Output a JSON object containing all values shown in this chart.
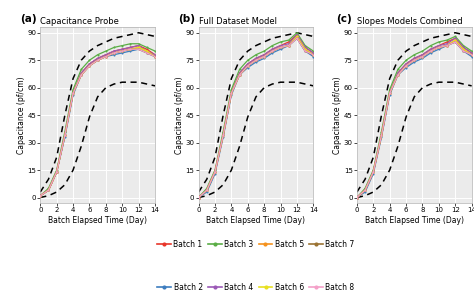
{
  "titles": [
    "Capacitance Probe",
    "Full Dataset Model",
    "Slopes Models Combined"
  ],
  "panel_labels": [
    "(a)",
    "(b)",
    "(c)"
  ],
  "ylabel": "Capacitance (pf/cm)",
  "xlabel": "Batch Elapsed Time (Day)",
  "ylim": [
    -3,
    93
  ],
  "xlim": [
    0,
    14
  ],
  "yticks": [
    0,
    15,
    30,
    45,
    60,
    75,
    90
  ],
  "xticks": [
    0,
    2,
    4,
    6,
    8,
    10,
    12,
    14
  ],
  "background_color": "#ffffff",
  "axes_bg_color": "#ebebeb",
  "grid_color": "#ffffff",
  "batches": {
    "Batch 1": {
      "color": "#e8362a"
    },
    "Batch 2": {
      "color": "#3d7dbf"
    },
    "Batch 3": {
      "color": "#5aad45"
    },
    "Batch 4": {
      "color": "#9b59b6"
    },
    "Batch 5": {
      "color": "#f5921e"
    },
    "Batch 6": {
      "color": "#e8e020"
    },
    "Batch 7": {
      "color": "#9b7333"
    },
    "Batch 8": {
      "color": "#f4a0c8"
    }
  },
  "legend_row1": [
    "Batch 1",
    "Batch 3",
    "Batch 5",
    "Batch 7"
  ],
  "legend_row2": [
    "Batch 2",
    "Batch 4",
    "Batch 6",
    "Batch 8"
  ],
  "days": [
    0,
    1,
    2,
    3,
    4,
    5,
    6,
    7,
    8,
    9,
    10,
    11,
    12,
    13,
    14
  ],
  "panel_a": {
    "Batch 1": [
      1,
      4,
      14,
      34,
      57,
      68,
      73,
      76,
      78,
      80,
      81,
      82,
      83,
      81,
      78
    ],
    "Batch 2": [
      1,
      4,
      14,
      33,
      56,
      67,
      72,
      75,
      77,
      78,
      79,
      80,
      81,
      79,
      77
    ],
    "Batch 3": [
      1,
      5,
      15,
      36,
      59,
      70,
      75,
      78,
      80,
      82,
      83,
      84,
      84,
      82,
      80
    ],
    "Batch 4": [
      1,
      4,
      14,
      34,
      57,
      68,
      73,
      76,
      78,
      80,
      81,
      82,
      83,
      80,
      78
    ],
    "Batch 5": [
      1,
      4,
      14,
      34,
      57,
      67,
      72,
      75,
      77,
      79,
      80,
      81,
      82,
      80,
      77
    ],
    "Batch 6": [
      1,
      4,
      14,
      34,
      57,
      67,
      72,
      75,
      77,
      79,
      80,
      81,
      82,
      80,
      77
    ],
    "Batch 7": [
      1,
      4,
      14,
      34,
      57,
      67,
      72,
      75,
      77,
      79,
      80,
      81,
      81,
      79,
      77
    ],
    "Batch 8": [
      1,
      4,
      14,
      34,
      57,
      67,
      72,
      75,
      77,
      79,
      80,
      81,
      81,
      79,
      77
    ]
  },
  "panel_b": {
    "Batch 1": [
      0,
      4,
      14,
      34,
      57,
      68,
      73,
      76,
      78,
      81,
      83,
      85,
      89,
      82,
      79
    ],
    "Batch 2": [
      0,
      3,
      13,
      33,
      56,
      67,
      71,
      74,
      76,
      79,
      81,
      83,
      87,
      80,
      77
    ],
    "Batch 3": [
      0,
      5,
      15,
      36,
      59,
      70,
      75,
      78,
      80,
      83,
      85,
      86,
      90,
      83,
      80
    ],
    "Batch 4": [
      0,
      4,
      14,
      34,
      57,
      68,
      73,
      76,
      78,
      81,
      83,
      84,
      89,
      82,
      79
    ],
    "Batch 5": [
      0,
      4,
      14,
      34,
      57,
      67,
      72,
      75,
      77,
      80,
      82,
      83,
      88,
      81,
      78
    ],
    "Batch 6": [
      0,
      4,
      14,
      34,
      57,
      67,
      72,
      75,
      77,
      80,
      82,
      83,
      88,
      81,
      78
    ],
    "Batch 7": [
      0,
      4,
      14,
      34,
      57,
      67,
      72,
      75,
      77,
      80,
      82,
      83,
      87,
      80,
      78
    ],
    "Batch 8": [
      0,
      4,
      14,
      34,
      57,
      67,
      72,
      75,
      77,
      80,
      82,
      83,
      87,
      80,
      78
    ]
  },
  "panel_c": {
    "Batch 1": [
      0,
      4,
      14,
      34,
      57,
      68,
      73,
      76,
      78,
      81,
      83,
      85,
      87,
      82,
      79
    ],
    "Batch 2": [
      0,
      3,
      13,
      33,
      56,
      67,
      71,
      74,
      76,
      79,
      81,
      83,
      85,
      80,
      77
    ],
    "Batch 3": [
      0,
      5,
      15,
      36,
      59,
      70,
      75,
      78,
      80,
      83,
      85,
      86,
      88,
      83,
      80
    ],
    "Batch 4": [
      0,
      4,
      14,
      34,
      57,
      68,
      73,
      76,
      78,
      81,
      83,
      84,
      87,
      82,
      79
    ],
    "Batch 5": [
      0,
      4,
      14,
      34,
      57,
      67,
      72,
      75,
      77,
      80,
      82,
      83,
      86,
      81,
      78
    ],
    "Batch 6": [
      0,
      4,
      14,
      34,
      57,
      67,
      72,
      75,
      77,
      80,
      82,
      83,
      86,
      81,
      78
    ],
    "Batch 7": [
      0,
      4,
      14,
      34,
      57,
      67,
      72,
      75,
      77,
      80,
      82,
      83,
      85,
      80,
      78
    ],
    "Batch 8": [
      0,
      4,
      14,
      34,
      57,
      67,
      72,
      75,
      77,
      80,
      82,
      83,
      85,
      80,
      78
    ]
  },
  "dashed_upper": [
    3,
    10,
    22,
    45,
    65,
    75,
    80,
    83,
    85,
    87,
    88,
    89,
    90,
    89,
    88
  ],
  "dashed_lower": [
    0,
    1,
    3,
    7,
    15,
    28,
    44,
    55,
    60,
    62,
    63,
    63,
    63,
    62,
    61
  ]
}
